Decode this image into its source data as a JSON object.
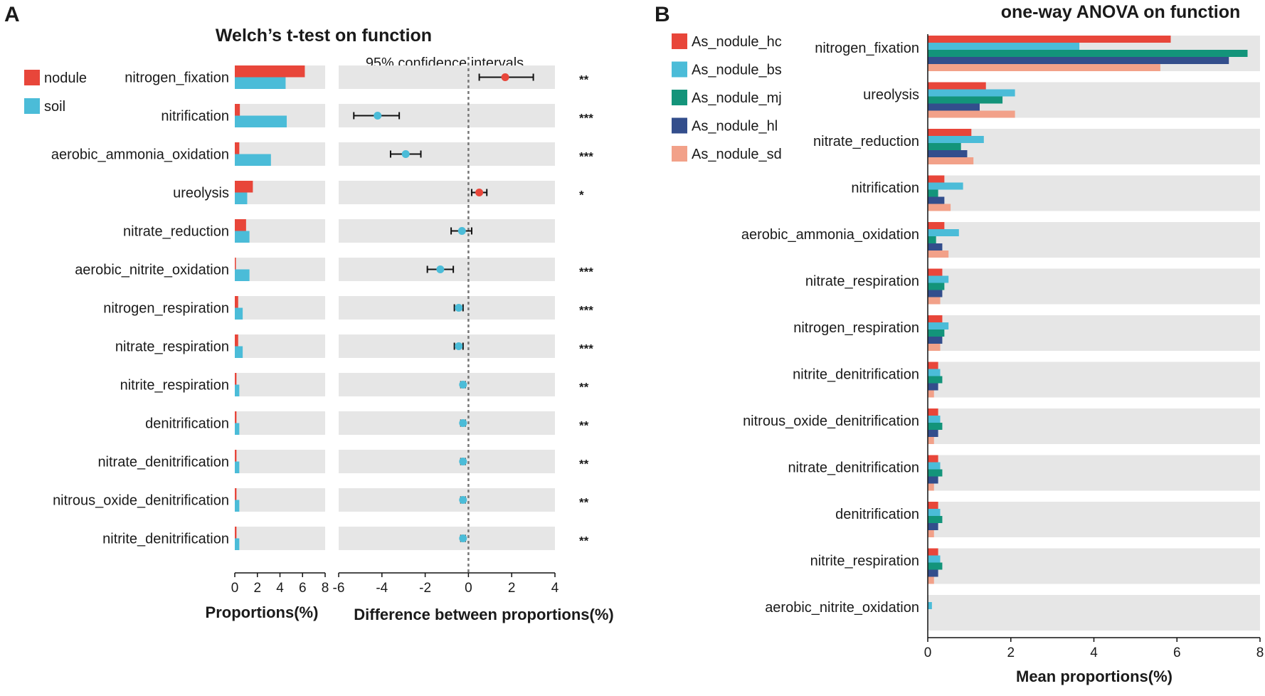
{
  "chart_data": [
    {
      "panel_label": "A",
      "type": "bar",
      "title": "Welch’s t-test on function",
      "xlabel": "Proportions(%)",
      "xlim": [
        0,
        8
      ],
      "xticks": [
        "0",
        "2",
        "4",
        "6",
        "8"
      ],
      "legend_position": "top-left",
      "categories": [
        "nitrogen_fixation",
        "nitrification",
        "aerobic_ammonia_oxidation",
        "ureolysis",
        "nitrate_reduction",
        "aerobic_nitrite_oxidation",
        "nitrogen_respiration",
        "nitrate_respiration",
        "nitrite_respiration",
        "denitrification",
        "nitrate_denitrification",
        "nitrous_oxide_denitrification",
        "nitrite_denitrification"
      ],
      "series": [
        {
          "name": "nodule",
          "color": "#e8463a",
          "values": [
            6.2,
            0.45,
            0.4,
            1.6,
            1.0,
            0.1,
            0.3,
            0.3,
            0.15,
            0.15,
            0.15,
            0.15,
            0.15
          ]
        },
        {
          "name": "soil",
          "color": "#4bbcd8",
          "values": [
            4.5,
            4.6,
            3.2,
            1.1,
            1.3,
            1.3,
            0.7,
            0.7,
            0.4,
            0.4,
            0.4,
            0.4,
            0.4
          ]
        }
      ]
    },
    {
      "panel_label": "",
      "type": "scatter",
      "title": "95% confidence intervals",
      "xlabel": "Difference between proportions(%)",
      "xlim": [
        -6,
        4
      ],
      "xticks": [
        "-6",
        "-4",
        "-2",
        "0",
        "2",
        "4"
      ],
      "categories": [
        "nitrogen_fixation",
        "nitrification",
        "aerobic_ammonia_oxidation",
        "ureolysis",
        "nitrate_reduction",
        "aerobic_nitrite_oxidation",
        "nitrogen_respiration",
        "nitrate_respiration",
        "nitrite_respiration",
        "denitrification",
        "nitrate_denitrification",
        "nitrous_oxide_denitrification",
        "nitrite_denitrification"
      ],
      "diff": [
        1.7,
        -4.2,
        -2.9,
        0.5,
        -0.3,
        -1.3,
        -0.45,
        -0.45,
        -0.25,
        -0.25,
        -0.25,
        -0.25,
        -0.25
      ],
      "ci_low": [
        0.5,
        -5.3,
        -3.6,
        0.15,
        -0.8,
        -1.9,
        -0.65,
        -0.65,
        -0.35,
        -0.35,
        -0.35,
        -0.35,
        -0.35
      ],
      "ci_high": [
        3.0,
        -3.2,
        -2.2,
        0.85,
        0.15,
        -0.7,
        -0.25,
        -0.25,
        -0.15,
        -0.15,
        -0.15,
        -0.15,
        -0.15
      ],
      "point_series": [
        "nodule",
        "soil",
        "soil",
        "nodule",
        "soil",
        "soil",
        "soil",
        "soil",
        "soil",
        "soil",
        "soil",
        "soil",
        "soil"
      ],
      "significance": [
        "**",
        "***",
        "***",
        "*",
        "",
        "***",
        "***",
        "***",
        "**",
        "**",
        "**",
        "**",
        "**"
      ]
    },
    {
      "panel_label": "B",
      "type": "bar",
      "title": "one-way ANOVA on function",
      "xlabel": "Mean proportions(%)",
      "xlim": [
        0,
        8
      ],
      "xticks": [
        "0",
        "2",
        "4",
        "6",
        "8"
      ],
      "legend_position": "top-left",
      "categories": [
        "nitrogen_fixation",
        "ureolysis",
        "nitrate_reduction",
        "nitrification",
        "aerobic_ammonia_oxidation",
        "nitrate_respiration",
        "nitrogen_respiration",
        "nitrite_denitrification",
        "nitrous_oxide_denitrification",
        "nitrate_denitrification",
        "denitrification",
        "nitrite_respiration",
        "aerobic_nitrite_oxidation"
      ],
      "series": [
        {
          "name": "As_nodule_hc",
          "color": "#e8463a",
          "values": [
            5.85,
            1.4,
            1.05,
            0.4,
            0.4,
            0.35,
            0.35,
            0.25,
            0.25,
            0.25,
            0.25,
            0.25,
            0.0
          ]
        },
        {
          "name": "As_nodule_bs",
          "color": "#4bbcd8",
          "values": [
            3.65,
            2.1,
            1.35,
            0.85,
            0.75,
            0.5,
            0.5,
            0.3,
            0.3,
            0.3,
            0.3,
            0.3,
            0.1
          ]
        },
        {
          "name": "As_nodule_mj",
          "color": "#13947a",
          "values": [
            7.7,
            1.8,
            0.8,
            0.25,
            0.2,
            0.4,
            0.4,
            0.35,
            0.35,
            0.35,
            0.35,
            0.35,
            0.0
          ]
        },
        {
          "name": "As_nodule_hl",
          "color": "#334e8c",
          "values": [
            7.25,
            1.25,
            0.95,
            0.4,
            0.35,
            0.35,
            0.35,
            0.25,
            0.25,
            0.25,
            0.25,
            0.25,
            0.0
          ]
        },
        {
          "name": "As_nodule_sd",
          "color": "#f2a189",
          "values": [
            5.6,
            2.1,
            1.1,
            0.55,
            0.5,
            0.3,
            0.3,
            0.15,
            0.15,
            0.15,
            0.15,
            0.15,
            0.0
          ]
        }
      ]
    }
  ]
}
